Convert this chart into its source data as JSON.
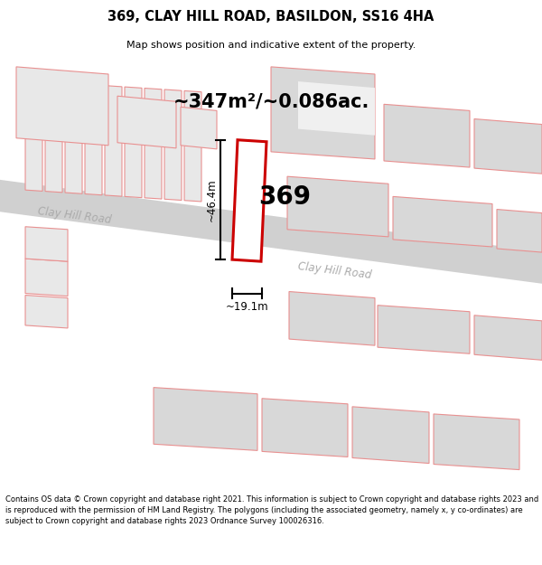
{
  "title": "369, CLAY HILL ROAD, BASILDON, SS16 4HA",
  "subtitle": "Map shows position and indicative extent of the property.",
  "area_text": "~347m²/~0.086ac.",
  "width_label": "~19.1m",
  "height_label": "~46.4m",
  "property_number": "369",
  "road_label_center": "Clay Hill Road",
  "road_label_left": "Clay Hill Road",
  "footer_text": "Contains OS data © Crown copyright and database right 2021. This information is subject to Crown copyright and database rights 2023 and is reproduced with the permission of HM Land Registry. The polygons (including the associated geometry, namely x, y co-ordinates) are subject to Crown copyright and database rights 2023 Ordnance Survey 100026316.",
  "property_outline_color": "#cc0000",
  "pink_line_color": "#e89090",
  "building_fill_light": "#e8e8e8",
  "building_fill_mid": "#d8d8d8",
  "road_fill": "#d0d0d0",
  "map_bg": "#f0f0f0",
  "road_text_color": "#aaaaaa",
  "dim_color": "#000000"
}
